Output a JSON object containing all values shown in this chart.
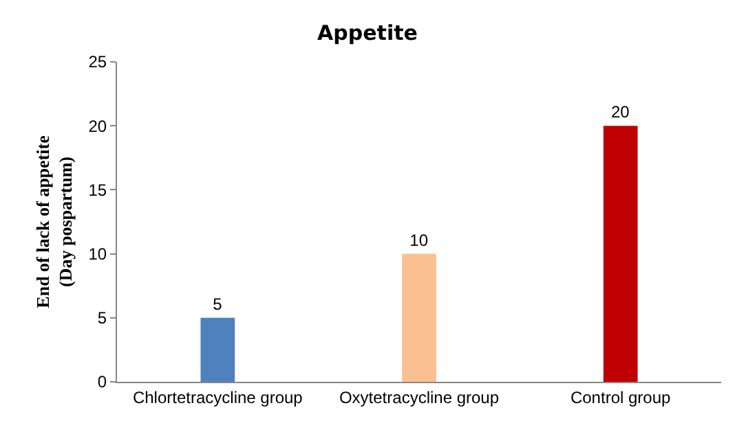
{
  "chart_data": {
    "type": "bar",
    "title": "Appetite",
    "ylabel": "End of lack of appetite\n(Day pospartum)",
    "categories": [
      "Chlortetracycline group",
      "Oxytetracycline group",
      "Control group"
    ],
    "values": [
      5,
      10,
      20
    ],
    "colors": [
      "#4f81bd",
      "#fac090",
      "#c00000"
    ],
    "ylim": [
      0,
      25
    ],
    "yticks": [
      0,
      5,
      10,
      15,
      20,
      25
    ],
    "data_labels": true
  }
}
